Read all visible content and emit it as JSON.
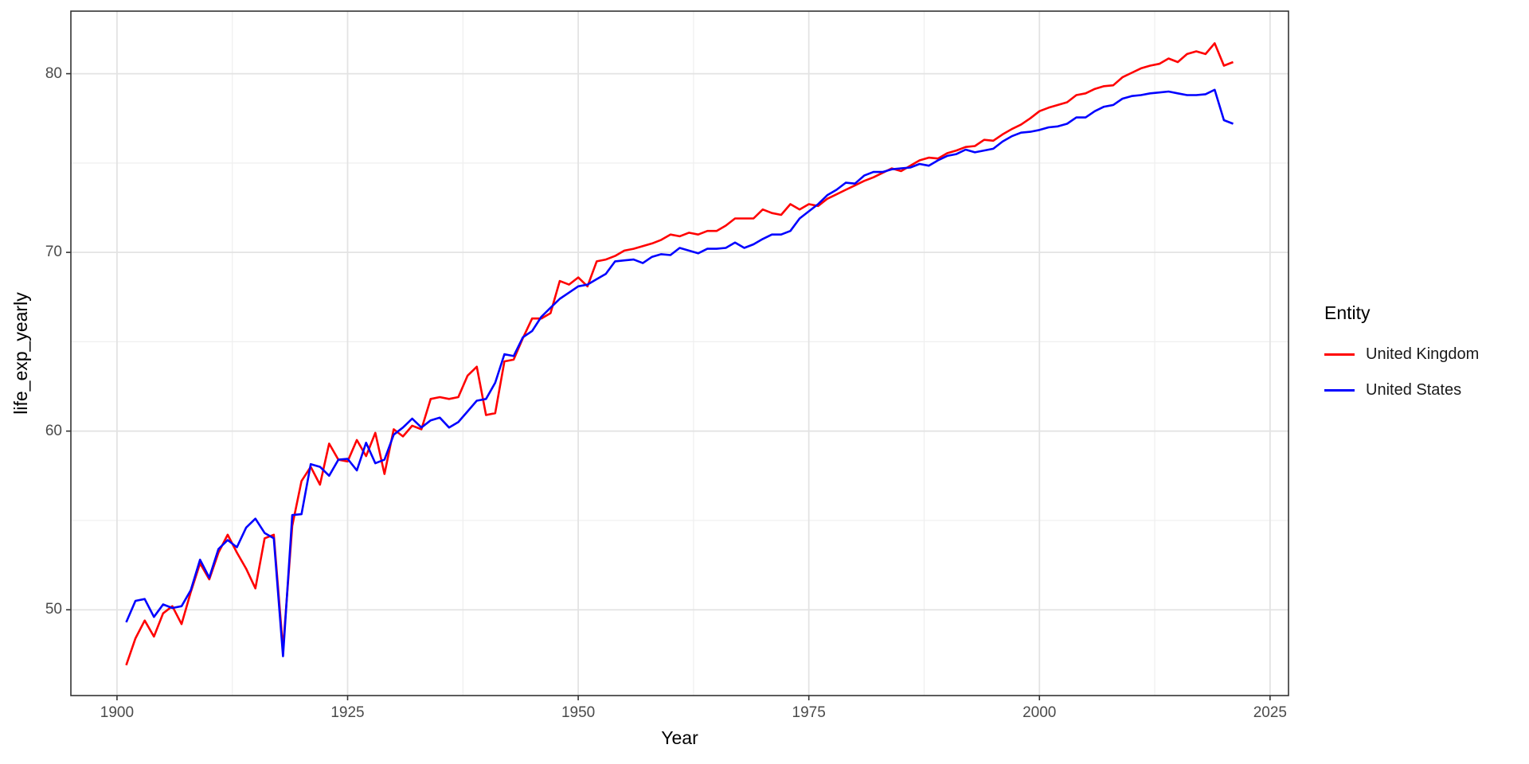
{
  "chart_data": {
    "type": "line",
    "title": "",
    "xlabel": "Year",
    "ylabel": "life_exp_yearly",
    "legend_title": "Entity",
    "legend_position": "right",
    "grid": "on",
    "panel_border_color": "#333333",
    "major_grid_color": "#e3e3e3",
    "minor_grid_color": "#efefef",
    "tick_color": "#333333",
    "tick_label_color": "#4a4a4a",
    "xlim": [
      1895,
      2027
    ],
    "ylim": [
      45.2,
      83.5
    ],
    "x_ticks": [
      1900,
      1925,
      1950,
      1975,
      2000,
      2025
    ],
    "y_ticks": [
      50,
      60,
      70,
      80
    ],
    "x_minor_ticks": [
      1912.5,
      1937.5,
      1962.5,
      1987.5,
      2012.5
    ],
    "y_minor_ticks": [
      55,
      65,
      75
    ],
    "x": [
      1901,
      1902,
      1903,
      1904,
      1905,
      1906,
      1907,
      1908,
      1909,
      1910,
      1911,
      1912,
      1913,
      1914,
      1915,
      1916,
      1917,
      1918,
      1919,
      1920,
      1921,
      1922,
      1923,
      1924,
      1925,
      1926,
      1927,
      1928,
      1929,
      1930,
      1931,
      1932,
      1933,
      1934,
      1935,
      1936,
      1937,
      1938,
      1939,
      1940,
      1941,
      1942,
      1943,
      1944,
      1945,
      1946,
      1947,
      1948,
      1949,
      1950,
      1951,
      1952,
      1953,
      1954,
      1955,
      1956,
      1957,
      1958,
      1959,
      1960,
      1961,
      1962,
      1963,
      1964,
      1965,
      1966,
      1967,
      1968,
      1969,
      1970,
      1971,
      1972,
      1973,
      1974,
      1975,
      1976,
      1977,
      1978,
      1979,
      1980,
      1981,
      1982,
      1983,
      1984,
      1985,
      1986,
      1987,
      1988,
      1989,
      1990,
      1991,
      1992,
      1993,
      1994,
      1995,
      1996,
      1997,
      1998,
      1999,
      2000,
      2001,
      2002,
      2003,
      2004,
      2005,
      2006,
      2007,
      2008,
      2009,
      2010,
      2011,
      2012,
      2013,
      2014,
      2015,
      2016,
      2017,
      2018,
      2019,
      2020,
      2021
    ],
    "series": [
      {
        "name": "United Kingdom",
        "color": "#ff0000",
        "values": [
          46.9,
          48.4,
          49.4,
          48.5,
          49.8,
          50.2,
          49.2,
          51.0,
          52.6,
          51.7,
          53.2,
          54.2,
          53.2,
          52.3,
          51.2,
          54.0,
          54.2,
          47.8,
          54.7,
          57.2,
          58.0,
          57.0,
          59.3,
          58.4,
          58.3,
          59.5,
          58.6,
          59.9,
          57.6,
          60.1,
          59.7,
          60.3,
          60.1,
          61.8,
          61.9,
          61.8,
          61.9,
          63.1,
          63.6,
          60.9,
          61.0,
          63.9,
          64.0,
          65.2,
          66.3,
          66.3,
          66.6,
          68.4,
          68.2,
          68.6,
          68.1,
          69.5,
          69.6,
          69.8,
          70.1,
          70.2,
          70.35,
          70.5,
          70.7,
          71.0,
          70.9,
          71.1,
          71.0,
          71.2,
          71.2,
          71.5,
          71.9,
          71.9,
          71.9,
          72.4,
          72.2,
          72.1,
          72.7,
          72.4,
          72.7,
          72.6,
          73.0,
          73.25,
          73.5,
          73.75,
          74.0,
          74.2,
          74.45,
          74.7,
          74.55,
          74.85,
          75.15,
          75.3,
          75.25,
          75.55,
          75.7,
          75.9,
          75.95,
          76.3,
          76.25,
          76.6,
          76.9,
          77.15,
          77.5,
          77.9,
          78.1,
          78.25,
          78.4,
          78.8,
          78.9,
          79.15,
          79.3,
          79.35,
          79.8,
          80.05,
          80.3,
          80.45,
          80.55,
          80.85,
          80.65,
          81.1,
          81.25,
          81.1,
          81.7,
          80.45,
          80.65
        ]
      },
      {
        "name": "United States",
        "color": "#0000ff",
        "values": [
          49.3,
          50.5,
          50.6,
          49.6,
          50.3,
          50.1,
          50.2,
          51.1,
          52.8,
          51.8,
          53.4,
          53.9,
          53.5,
          54.6,
          55.1,
          54.3,
          54.0,
          47.4,
          55.3,
          55.35,
          58.15,
          58.0,
          57.5,
          58.4,
          58.45,
          57.8,
          59.35,
          58.2,
          58.4,
          59.8,
          60.2,
          60.7,
          60.2,
          60.6,
          60.75,
          60.2,
          60.5,
          61.1,
          61.7,
          61.8,
          62.7,
          64.3,
          64.2,
          65.25,
          65.6,
          66.4,
          66.9,
          67.4,
          67.75,
          68.1,
          68.2,
          68.5,
          68.8,
          69.5,
          69.55,
          69.6,
          69.4,
          69.75,
          69.9,
          69.85,
          70.25,
          70.1,
          69.95,
          70.2,
          70.2,
          70.25,
          70.55,
          70.25,
          70.45,
          70.75,
          71.0,
          71.0,
          71.2,
          71.9,
          72.3,
          72.7,
          73.2,
          73.5,
          73.9,
          73.85,
          74.3,
          74.5,
          74.5,
          74.65,
          74.7,
          74.75,
          74.95,
          74.85,
          75.15,
          75.4,
          75.5,
          75.75,
          75.6,
          75.7,
          75.8,
          76.2,
          76.5,
          76.7,
          76.75,
          76.85,
          77.0,
          77.05,
          77.2,
          77.55,
          77.55,
          77.9,
          78.15,
          78.25,
          78.6,
          78.75,
          78.8,
          78.9,
          78.95,
          79.0,
          78.9,
          78.8,
          78.8,
          78.85,
          79.1,
          77.4,
          77.2
        ]
      }
    ]
  }
}
